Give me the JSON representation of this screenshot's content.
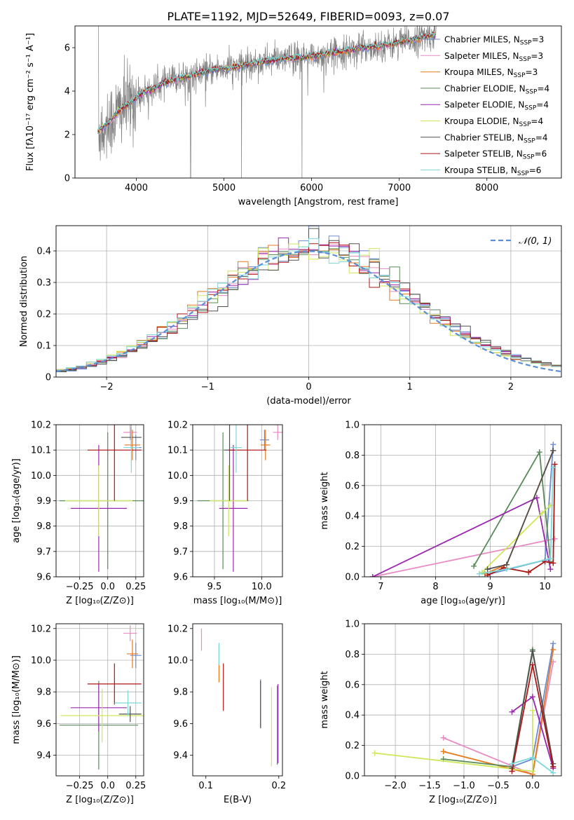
{
  "figure": {
    "title": "PLATE=1192, MJD=52649, FIBERID=0093, z=0.07"
  },
  "colors": {
    "data": "#808080",
    "grid": "#b0b0b0",
    "normal_curve": "#5b8fd6"
  },
  "models": [
    {
      "name": "Chabrier MILES, N_SSP=3",
      "label": "Chabrier MILES, N",
      "sub": "SSP",
      "eq": "=3",
      "color": "#6a8cd6"
    },
    {
      "name": "Salpeter MILES, N_SSP=3",
      "label": "Salpeter MILES, N",
      "sub": "SSP",
      "eq": "=3",
      "color": "#e88ac3"
    },
    {
      "name": "Kroupa MILES, N_SSP=3",
      "label": "Kroupa MILES, N",
      "sub": "SSP",
      "eq": "=3",
      "color": "#e8781a"
    },
    {
      "name": "Chabrier ELODIE, N_SSP=4",
      "label": "Chabrier ELODIE, N",
      "sub": "SSP",
      "eq": "=4",
      "color": "#5a8a5a"
    },
    {
      "name": "Salpeter ELODIE, N_SSP=4",
      "label": "Salpeter ELODIE, N",
      "sub": "SSP",
      "eq": "=4",
      "color": "#9b27b0"
    },
    {
      "name": "Kroupa ELODIE, N_SSP=4",
      "label": "Kroupa ELODIE, N",
      "sub": "SSP",
      "eq": "=4",
      "color": "#cde85a"
    },
    {
      "name": "Chabrier STELIB, N_SSP=4",
      "label": "Chabrier STELIB, N",
      "sub": "SSP",
      "eq": "=4",
      "color": "#505050"
    },
    {
      "name": "Salpeter STELIB, N_SSP=6",
      "label": "Salpeter STELIB, N",
      "sub": "SSP",
      "eq": "=6",
      "color": "#b01515"
    },
    {
      "name": "Kroupa STELIB, N_SSP=6",
      "label": "Kroupa STELIB, N",
      "sub": "SSP",
      "eq": "=6",
      "color": "#7dd8d8"
    }
  ],
  "chart_data": [
    {
      "id": "spectrum",
      "type": "line",
      "xlabel": "wavelength [Angstrom, rest frame]",
      "ylabel": "Flux [fλ10⁻¹⁷ erg cm⁻² s⁻¹ A⁻¹]",
      "xlim": [
        3300,
        8850
      ],
      "ylim": [
        0,
        7.0
      ],
      "xticks": [
        4000,
        5000,
        6000,
        7000,
        8000
      ],
      "yticks": [
        0,
        2,
        4,
        6
      ],
      "grid": false,
      "legend": "top-right",
      "continuum": {
        "x": [
          3550,
          3700,
          3800,
          3900,
          4000,
          4100,
          4200,
          4300,
          4500,
          4700,
          4900,
          5100,
          5300,
          5500,
          5700,
          5900,
          6100,
          6300,
          6500,
          6700,
          6900,
          7100,
          7300,
          7400
        ],
        "y": [
          2.1,
          2.6,
          3.1,
          3.4,
          3.7,
          4.0,
          4.1,
          4.35,
          4.6,
          4.8,
          5.0,
          5.1,
          5.25,
          5.4,
          5.5,
          5.55,
          5.65,
          5.8,
          5.95,
          6.05,
          6.15,
          6.3,
          6.5,
          6.6
        ]
      }
    },
    {
      "id": "residuals",
      "type": "line",
      "xlabel": "(data-model)/error",
      "ylabel": "Normed distribution",
      "xlim": [
        -2.5,
        2.5
      ],
      "ylim": [
        0,
        0.48
      ],
      "xticks": [
        -2,
        -1,
        0,
        1,
        2
      ],
      "yticks": [
        0.0,
        0.1,
        0.2,
        0.3,
        0.4
      ],
      "grid": true,
      "legend": "top-right",
      "normal_label": "𝒩(0, 1)",
      "bin_width": 0.1
    },
    {
      "id": "z-age",
      "type": "scatter",
      "xlabel": "Z [log₁₀(Z/Z⊙)]",
      "ylabel": "age  [log₁₀(age/yr)]",
      "xlim": [
        -0.46,
        0.32
      ],
      "ylim": [
        9.6,
        10.2
      ],
      "xticks": [
        -0.25,
        0.0,
        0.25
      ],
      "yticks": [
        9.6,
        9.7,
        9.8,
        9.9,
        10.0,
        10.1,
        10.2
      ],
      "grid": true,
      "points": [
        {
          "x": 0.25,
          "y": 10.11,
          "xerr": 0.05,
          "yerr": 0.05
        },
        {
          "x": 0.2,
          "y": 10.17,
          "xerr": 0.06,
          "yerr": 0.03
        },
        {
          "x": 0.22,
          "y": 10.12,
          "xerr": 0.07,
          "yerr": 0.06
        },
        {
          "x": 0.0,
          "y": 9.9,
          "xerr": 0.43,
          "yerr": 0.27
        },
        {
          "x": -0.08,
          "y": 9.87,
          "xerr": 0.25,
          "yerr": 0.25
        },
        {
          "x": -0.08,
          "y": 9.9,
          "xerr": 0.3,
          "yerr": 0.14
        },
        {
          "x": 0.21,
          "y": 10.15,
          "xerr": 0.09,
          "yerr": 0.04
        },
        {
          "x": 0.06,
          "y": 10.1,
          "xerr": 0.24,
          "yerr": 0.2
        },
        {
          "x": 0.21,
          "y": 10.11,
          "xerr": 0.07,
          "yerr": 0.1
        }
      ]
    },
    {
      "id": "mass-age",
      "type": "scatter",
      "xlabel": "mass [log₁₀(M/M⊙)]",
      "ylabel": "",
      "xlim": [
        9.27,
        10.22
      ],
      "ylim": [
        9.6,
        10.2
      ],
      "xticks": [
        9.5,
        10.0
      ],
      "yticks": [
        9.6,
        9.7,
        9.8,
        9.9,
        10.0,
        10.1,
        10.2
      ],
      "grid": true,
      "points": [
        {
          "x": 10.03,
          "y": 10.14,
          "xerr": 0.05,
          "yerr": 0.04
        },
        {
          "x": 10.17,
          "y": 10.17,
          "xerr": 0.05,
          "yerr": 0.03
        },
        {
          "x": 10.04,
          "y": 10.12,
          "xerr": 0.05,
          "yerr": 0.06
        },
        {
          "x": 9.59,
          "y": 9.9,
          "xerr": 0.27,
          "yerr": 0.27
        },
        {
          "x": 9.7,
          "y": 9.87,
          "xerr": 0.15,
          "yerr": 0.25
        },
        {
          "x": 9.65,
          "y": 9.9,
          "xerr": 0.2,
          "yerr": 0.14
        },
        {
          "x": 9.66,
          "y": 10.1,
          "xerr": 0.06,
          "yerr": 0.2
        },
        {
          "x": 9.85,
          "y": 10.1,
          "xerr": 0.2,
          "yerr": 0.2
        },
        {
          "x": 9.73,
          "y": 10.11,
          "xerr": 0.06,
          "yerr": 0.1
        }
      ]
    },
    {
      "id": "age-weight",
      "type": "line",
      "xlabel": "age  [log₁₀(age/yr)]",
      "ylabel": "mass weight",
      "xlim": [
        6.7,
        10.3
      ],
      "ylim": [
        0.0,
        1.0
      ],
      "xticks": [
        7,
        8,
        9,
        10
      ],
      "yticks": [
        0.0,
        0.2,
        0.4,
        0.6,
        0.8,
        1.0
      ],
      "grid": true,
      "series": [
        {
          "x": [
            9.0,
            10.0,
            10.15
          ],
          "y": [
            0.02,
            0.11,
            0.87
          ]
        },
        {
          "x": [
            6.85,
            10.18
          ],
          "y": [
            0.0,
            0.25
          ]
        },
        {
          "x": [
            8.9,
            9.3,
            10.15
          ],
          "y": [
            0.02,
            0.08,
            0.83
          ]
        },
        {
          "x": [
            8.7,
            9.9,
            10.1
          ],
          "y": [
            0.07,
            0.82,
            0.1
          ]
        },
        {
          "x": [
            6.85,
            9.85,
            10.1
          ],
          "y": [
            0.0,
            0.52,
            0.05
          ]
        },
        {
          "x": [
            8.85,
            9.95,
            10.1
          ],
          "y": [
            0.03,
            0.42,
            0.47
          ]
        },
        {
          "x": [
            8.95,
            9.3,
            10.15
          ],
          "y": [
            0.05,
            0.08,
            0.83
          ]
        },
        {
          "x": [
            8.95,
            9.25,
            9.7,
            10.0,
            10.15,
            10.18
          ],
          "y": [
            0.01,
            0.06,
            0.03,
            0.1,
            0.09,
            0.74
          ]
        },
        {
          "x": [
            8.8,
            9.3,
            10.1,
            10.15
          ],
          "y": [
            0.02,
            0.05,
            0.12,
            0.72
          ]
        }
      ]
    },
    {
      "id": "z-mass",
      "type": "scatter",
      "xlabel": "Z [log₁₀(Z/Z⊙)]",
      "ylabel": "mass [log₁₀(M/M⊙)]",
      "xlim": [
        -0.46,
        0.32
      ],
      "ylim": [
        9.27,
        10.23
      ],
      "xticks": [
        -0.25,
        0.0,
        0.25
      ],
      "yticks": [
        9.4,
        9.6,
        9.8,
        10.0,
        10.2
      ],
      "grid": true,
      "points": [
        {
          "x": 0.25,
          "y": 10.03,
          "xerr": 0.05,
          "yerr": 0.08
        },
        {
          "x": 0.2,
          "y": 10.17,
          "xerr": 0.06,
          "yerr": 0.05
        },
        {
          "x": 0.22,
          "y": 10.04,
          "xerr": 0.05,
          "yerr": 0.09
        },
        {
          "x": -0.08,
          "y": 9.59,
          "xerr": 0.35,
          "yerr": 0.28
        },
        {
          "x": -0.08,
          "y": 9.7,
          "xerr": 0.25,
          "yerr": 0.15
        },
        {
          "x": -0.05,
          "y": 9.65,
          "xerr": 0.37,
          "yerr": 0.17
        },
        {
          "x": 0.2,
          "y": 9.66,
          "xerr": 0.1,
          "yerr": 0.05
        },
        {
          "x": 0.06,
          "y": 9.85,
          "xerr": 0.24,
          "yerr": 0.13
        },
        {
          "x": 0.18,
          "y": 9.73,
          "xerr": 0.12,
          "yerr": 0.08
        }
      ]
    },
    {
      "id": "ebv-mass",
      "type": "scatter",
      "xlabel": "E(B-V)",
      "ylabel": "",
      "xlim": [
        0.082,
        0.205
      ],
      "ylim": [
        9.27,
        10.23
      ],
      "xticks": [
        0.1,
        0.2
      ],
      "yticks": [
        9.4,
        9.6,
        9.8,
        10.0,
        10.2
      ],
      "grid": false,
      "points": [
        {
          "x": 0.175,
          "y": 9.73,
          "xerr": 0.0,
          "yerr": 0.15
        },
        {
          "x": 0.094,
          "y": 10.13,
          "xerr": 0.0,
          "yerr": 0.07
        },
        {
          "x": 0.118,
          "y": 9.98,
          "xerr": 0.0,
          "yerr": 0.12
        },
        {
          "x": 0.198,
          "y": 9.59,
          "xerr": 0.0,
          "yerr": 0.25
        },
        {
          "x": 0.199,
          "y": 9.6,
          "xerr": 0.0,
          "yerr": 0.25
        },
        {
          "x": 0.19,
          "y": 9.58,
          "xerr": 0.0,
          "yerr": 0.25
        },
        {
          "x": 0.175,
          "y": 9.72,
          "xerr": 0.0,
          "yerr": 0.15
        },
        {
          "x": 0.124,
          "y": 9.83,
          "xerr": 0.0,
          "yerr": 0.15
        },
        {
          "x": 0.118,
          "y": 10.04,
          "xerr": 0.0,
          "yerr": 0.07
        }
      ]
    },
    {
      "id": "z-weight",
      "type": "line",
      "xlabel": "Z [log₁₀(Z/Z⊙)]",
      "ylabel": "mass weight",
      "xlim": [
        -2.45,
        0.42
      ],
      "ylim": [
        0.0,
        1.0
      ],
      "xticks": [
        -2.0,
        -1.5,
        -1.0,
        -0.5,
        0.0
      ],
      "yticks": [
        0.0,
        0.2,
        0.4,
        0.6,
        0.8,
        1.0
      ],
      "grid": true,
      "series": [
        {
          "x": [
            -0.3,
            0.0,
            0.3
          ],
          "y": [
            0.06,
            0.11,
            0.87
          ]
        },
        {
          "x": [
            -1.3,
            0.0,
            0.3
          ],
          "y": [
            0.25,
            0.01,
            0.75
          ]
        },
        {
          "x": [
            -1.3,
            0.0,
            0.3
          ],
          "y": [
            0.16,
            0.01,
            0.83
          ]
        },
        {
          "x": [
            -1.3,
            -0.3,
            0.0,
            0.3
          ],
          "y": [
            0.11,
            0.06,
            0.83,
            0.06
          ]
        },
        {
          "x": [
            -0.3,
            0.0,
            0.3
          ],
          "y": [
            0.42,
            0.52,
            0.05
          ]
        },
        {
          "x": [
            -2.3,
            0.0,
            0.0
          ],
          "y": [
            0.15,
            0.03,
            0.43
          ]
        },
        {
          "x": [
            -0.3,
            0.0,
            0.3
          ],
          "y": [
            0.05,
            0.82,
            0.08
          ]
        },
        {
          "x": [
            -0.3,
            0.0,
            0.3
          ],
          "y": [
            0.03,
            0.73,
            0.06
          ]
        },
        {
          "x": [
            -0.3,
            0.0,
            0.3
          ],
          "y": [
            0.08,
            0.12,
            0.02
          ]
        }
      ]
    }
  ]
}
